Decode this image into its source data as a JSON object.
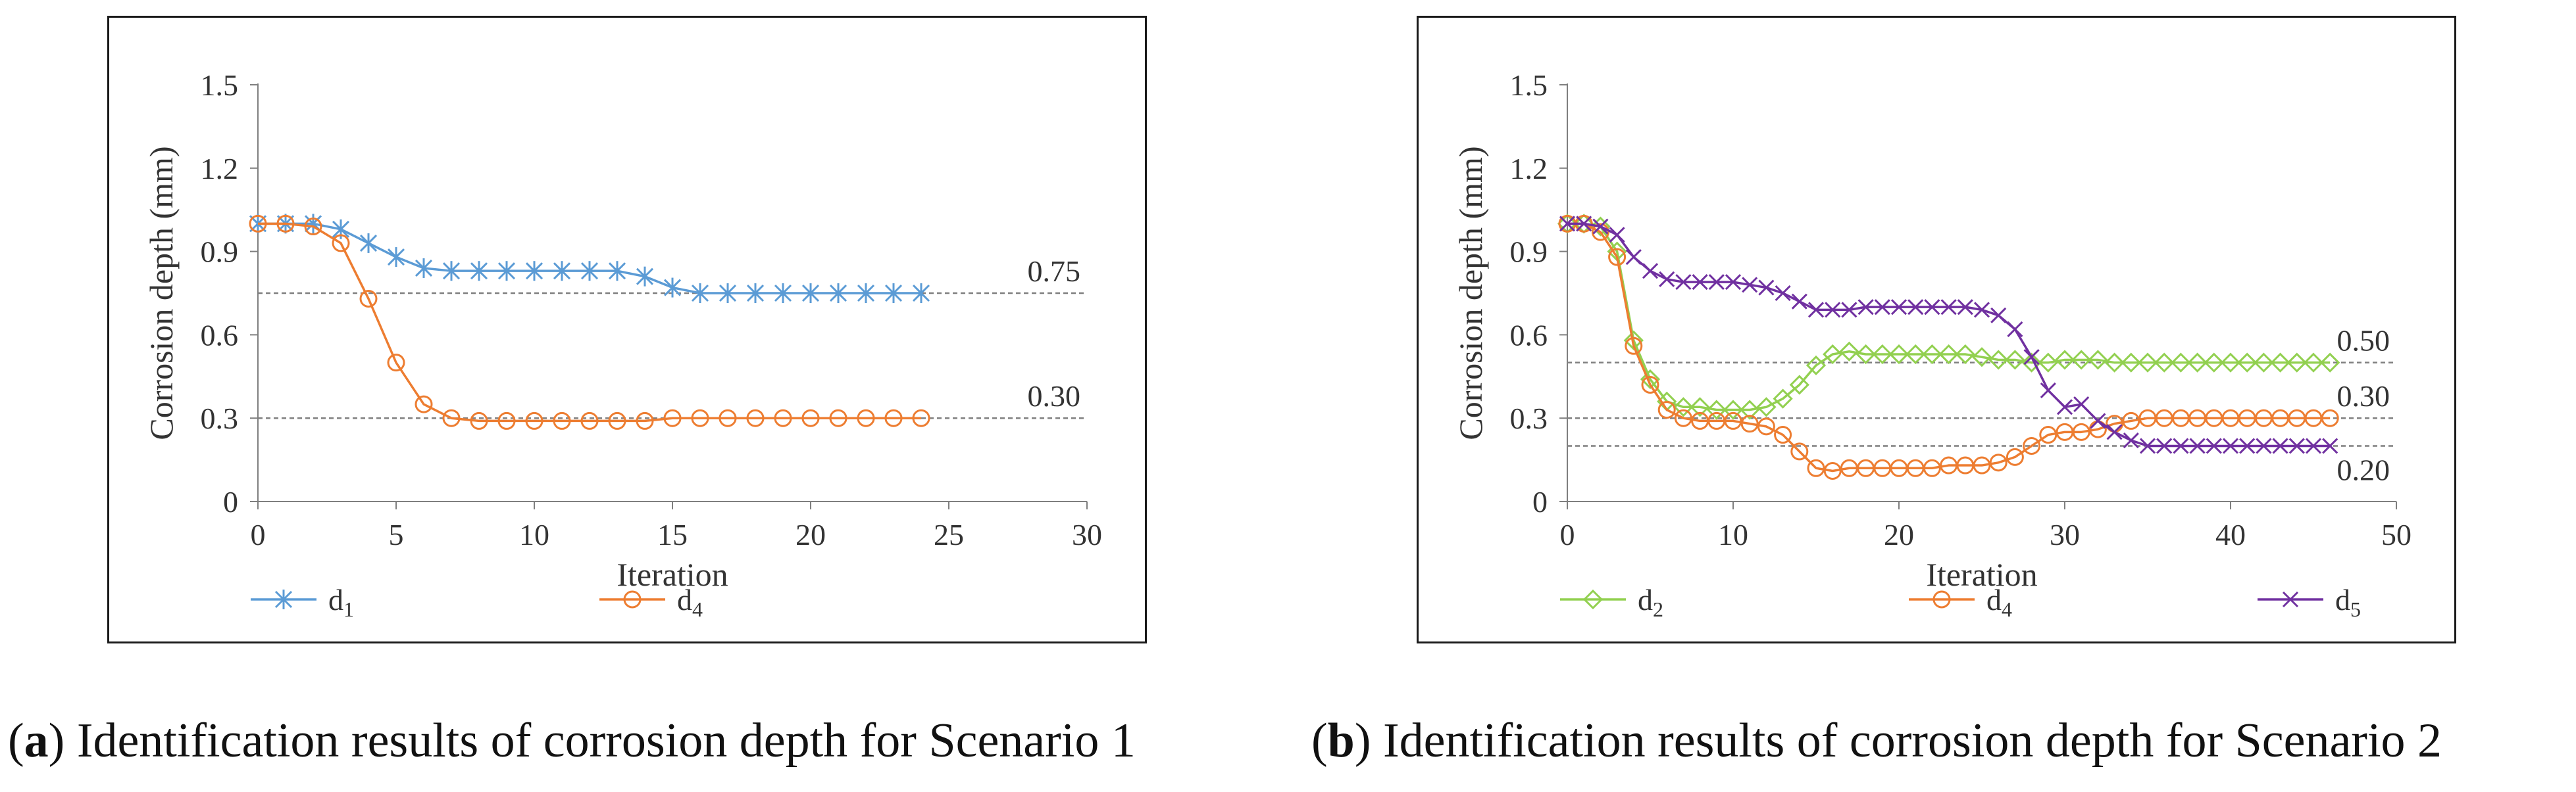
{
  "chart_data": [
    {
      "type": "line",
      "panel": "a",
      "xlabel": "Iteration",
      "ylabel": "Corrosion depth (mm)",
      "xlim": [
        0,
        30
      ],
      "ylim": [
        0,
        1.5
      ],
      "xticks": [
        "0",
        "5",
        "10",
        "15",
        "20",
        "25",
        "30"
      ],
      "yticks": [
        "0",
        "0.3",
        "0.6",
        "0.9",
        "1.2",
        "1.5"
      ],
      "reference_lines": [
        {
          "value": 0.75,
          "label": "0.75",
          "label_position": "above"
        },
        {
          "value": 0.3,
          "label": "0.30",
          "label_position": "above"
        }
      ],
      "legend_position": "bottom",
      "series": [
        {
          "name": "d",
          "subscript": "1",
          "color": "#5b9bd5",
          "marker": "asterisk",
          "x": [
            0,
            1,
            2,
            3,
            4,
            5,
            6,
            7,
            8,
            9,
            10,
            11,
            12,
            13,
            14,
            15,
            16,
            17,
            18,
            19,
            20,
            21,
            22,
            23,
            24
          ],
          "values": [
            1.0,
            1.0,
            1.0,
            0.98,
            0.93,
            0.88,
            0.84,
            0.83,
            0.83,
            0.83,
            0.83,
            0.83,
            0.83,
            0.83,
            0.81,
            0.77,
            0.75,
            0.75,
            0.75,
            0.75,
            0.75,
            0.75,
            0.75,
            0.75,
            0.75
          ]
        },
        {
          "name": "d",
          "subscript": "4",
          "color": "#ed7d31",
          "marker": "circle",
          "x": [
            0,
            1,
            2,
            3,
            4,
            5,
            6,
            7,
            8,
            9,
            10,
            11,
            12,
            13,
            14,
            15,
            16,
            17,
            18,
            19,
            20,
            21,
            22,
            23,
            24
          ],
          "values": [
            1.0,
            1.0,
            0.99,
            0.93,
            0.73,
            0.5,
            0.35,
            0.3,
            0.29,
            0.29,
            0.29,
            0.29,
            0.29,
            0.29,
            0.29,
            0.3,
            0.3,
            0.3,
            0.3,
            0.3,
            0.3,
            0.3,
            0.3,
            0.3,
            0.3
          ]
        }
      ]
    },
    {
      "type": "line",
      "panel": "b",
      "xlabel": "Iteration",
      "ylabel": "Corrosion depth (mm)",
      "xlim": [
        0,
        50
      ],
      "ylim": [
        0,
        1.5
      ],
      "xticks": [
        "0",
        "10",
        "20",
        "30",
        "40",
        "50"
      ],
      "yticks": [
        "0",
        "0.3",
        "0.6",
        "0.9",
        "1.2",
        "1.5"
      ],
      "reference_lines": [
        {
          "value": 0.5,
          "label": "0.50",
          "label_position": "above"
        },
        {
          "value": 0.3,
          "label": "0.30",
          "label_position": "above"
        },
        {
          "value": 0.2,
          "label": "0.20",
          "label_position": "below"
        }
      ],
      "legend_position": "bottom",
      "series": [
        {
          "name": "d",
          "subscript": "2",
          "color": "#92d050",
          "marker": "diamond",
          "x": [
            0,
            1,
            2,
            3,
            4,
            5,
            6,
            7,
            8,
            9,
            10,
            11,
            12,
            13,
            14,
            15,
            16,
            17,
            18,
            19,
            20,
            21,
            22,
            23,
            24,
            25,
            26,
            27,
            28,
            29,
            30,
            31,
            32,
            33,
            34,
            35,
            36,
            37,
            38,
            39,
            40,
            41,
            42,
            43,
            44,
            45,
            46
          ],
          "values": [
            1.0,
            1.0,
            0.99,
            0.9,
            0.58,
            0.44,
            0.36,
            0.34,
            0.34,
            0.33,
            0.33,
            0.33,
            0.34,
            0.37,
            0.42,
            0.49,
            0.53,
            0.54,
            0.53,
            0.53,
            0.53,
            0.53,
            0.53,
            0.53,
            0.53,
            0.52,
            0.51,
            0.51,
            0.5,
            0.5,
            0.51,
            0.51,
            0.51,
            0.5,
            0.5,
            0.5,
            0.5,
            0.5,
            0.5,
            0.5,
            0.5,
            0.5,
            0.5,
            0.5,
            0.5,
            0.5,
            0.5
          ]
        },
        {
          "name": "d",
          "subscript": "4",
          "color": "#ed7d31",
          "marker": "circle",
          "x": [
            0,
            1,
            2,
            3,
            4,
            5,
            6,
            7,
            8,
            9,
            10,
            11,
            12,
            13,
            14,
            15,
            16,
            17,
            18,
            19,
            20,
            21,
            22,
            23,
            24,
            25,
            26,
            27,
            28,
            29,
            30,
            31,
            32,
            33,
            34,
            35,
            36,
            37,
            38,
            39,
            40,
            41,
            42,
            43,
            44,
            45,
            46
          ],
          "values": [
            1.0,
            1.0,
            0.97,
            0.88,
            0.56,
            0.42,
            0.33,
            0.3,
            0.29,
            0.29,
            0.29,
            0.28,
            0.27,
            0.24,
            0.18,
            0.12,
            0.11,
            0.12,
            0.12,
            0.12,
            0.12,
            0.12,
            0.12,
            0.13,
            0.13,
            0.13,
            0.14,
            0.16,
            0.2,
            0.24,
            0.25,
            0.25,
            0.26,
            0.28,
            0.29,
            0.3,
            0.3,
            0.3,
            0.3,
            0.3,
            0.3,
            0.3,
            0.3,
            0.3,
            0.3,
            0.3,
            0.3
          ]
        },
        {
          "name": "d",
          "subscript": "5",
          "color": "#7030a0",
          "marker": "x",
          "x": [
            0,
            1,
            2,
            3,
            4,
            5,
            6,
            7,
            8,
            9,
            10,
            11,
            12,
            13,
            14,
            15,
            16,
            17,
            18,
            19,
            20,
            21,
            22,
            23,
            24,
            25,
            26,
            27,
            28,
            29,
            30,
            31,
            32,
            33,
            34,
            35,
            36,
            37,
            38,
            39,
            40,
            41,
            42,
            43,
            44,
            45,
            46
          ],
          "values": [
            1.0,
            1.0,
            0.99,
            0.96,
            0.88,
            0.83,
            0.8,
            0.79,
            0.79,
            0.79,
            0.79,
            0.78,
            0.77,
            0.75,
            0.72,
            0.69,
            0.69,
            0.69,
            0.7,
            0.7,
            0.7,
            0.7,
            0.7,
            0.7,
            0.7,
            0.69,
            0.67,
            0.62,
            0.52,
            0.4,
            0.34,
            0.35,
            0.29,
            0.25,
            0.22,
            0.2,
            0.2,
            0.2,
            0.2,
            0.2,
            0.2,
            0.2,
            0.2,
            0.2,
            0.2,
            0.2,
            0.2
          ]
        }
      ]
    }
  ],
  "captions": [
    {
      "label": "a",
      "text": " Identification results of corrosion depth for Scenario 1"
    },
    {
      "label": "b",
      "text": " Identification results of corrosion depth for Scenario 2"
    }
  ]
}
